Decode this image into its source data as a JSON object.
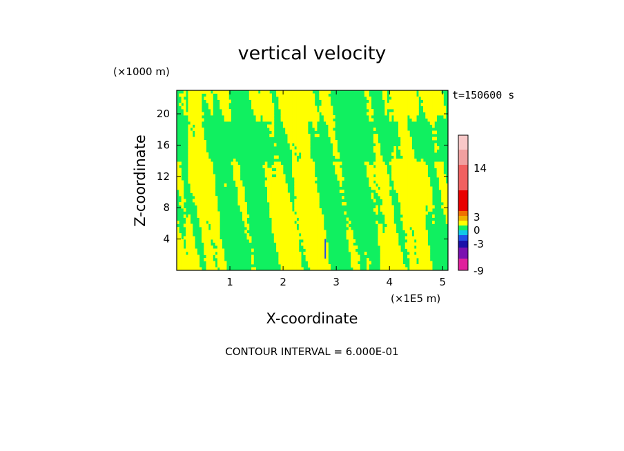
{
  "chart_data": {
    "type": "heatmap",
    "title": "vertical velocity",
    "xlabel": "X-coordinate",
    "ylabel": "Z-coordinate",
    "x_unit": "(×1E5 m)",
    "y_unit": "(×1000 m)",
    "time_label": "t=150600 s",
    "contour_note": "CONTOUR INTERVAL = 6.000E-01",
    "xlim": [
      0,
      5.1
    ],
    "ylim": [
      0,
      23
    ],
    "x_ticks": [
      1,
      2,
      3,
      4,
      5
    ],
    "y_ticks": [
      4,
      8,
      12,
      16,
      20
    ],
    "colorbar": {
      "tick_labels": [
        "14",
        "3",
        "0",
        "-3",
        "-9"
      ],
      "bands": [
        {
          "color": "#e0209c"
        },
        {
          "color": "#7a10b0"
        },
        {
          "color": "#1a10a8"
        },
        {
          "color": "#2050e8"
        },
        {
          "color": "#10c8e8"
        },
        {
          "color": "#10f060"
        },
        {
          "color": "#ffff00"
        },
        {
          "color": "#f0b000"
        },
        {
          "color": "#f07000"
        },
        {
          "color": "#e80000"
        },
        {
          "color": "#f06060"
        },
        {
          "color": "#f0a0a0"
        },
        {
          "color": "#f8c8c8"
        }
      ]
    },
    "field_colors": {
      "positive": "#ffff00",
      "negative": "#10f060",
      "accent": "#2050e8"
    }
  }
}
